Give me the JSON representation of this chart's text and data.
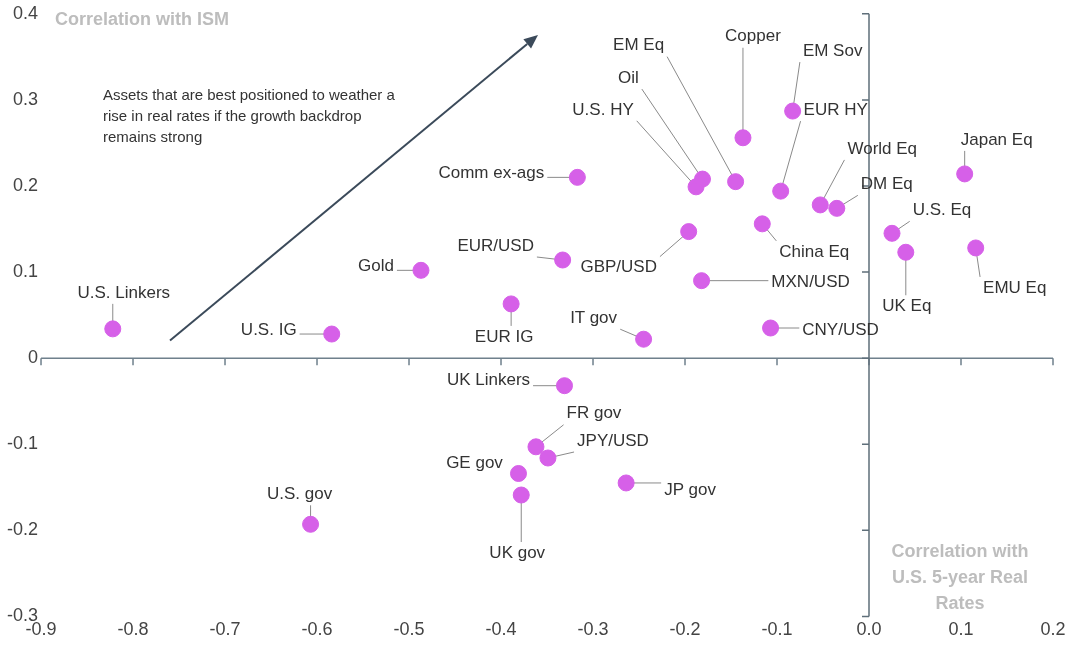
{
  "chart_data": {
    "type": "scatter",
    "xlabel": "Correlation with U.S. 5-year Real Rates",
    "ylabel": "Correlation with ISM",
    "x": [
      -0.822,
      -0.584,
      -0.487,
      -0.389,
      -0.333,
      -0.317,
      -0.245,
      -0.196,
      -0.182,
      -0.188,
      -0.181,
      -0.145,
      -0.137,
      -0.083,
      -0.096,
      -0.116,
      -0.053,
      -0.035,
      -0.107,
      0.025,
      0.04,
      0.104,
      0.116,
      -0.331,
      -0.362,
      -0.349,
      -0.381,
      -0.264,
      -0.378,
      -0.607
    ],
    "values": [
      0.034,
      0.028,
      0.102,
      0.063,
      0.114,
      0.21,
      0.022,
      0.147,
      0.09,
      0.199,
      0.208,
      0.205,
      0.256,
      0.287,
      0.194,
      0.156,
      0.178,
      0.174,
      0.035,
      0.145,
      0.123,
      0.214,
      0.128,
      -0.032,
      -0.103,
      -0.116,
      -0.134,
      -0.145,
      -0.159,
      -0.193
    ],
    "color": "#d660e8",
    "marker": "circle",
    "grid": false,
    "legend": false,
    "ref_lines": [
      {
        "axis": "y",
        "value": 0,
        "color": "#6f808c"
      },
      {
        "axis": "x",
        "value": 0,
        "color": "#5f6f7a"
      }
    ],
    "xlim": [
      -0.9,
      0.2
    ],
    "xticks": [
      -0.9,
      -0.8,
      -0.7,
      -0.6,
      -0.5,
      -0.4,
      -0.3,
      -0.2,
      -0.1,
      {
        "value": 0,
        "label": "0.0"
      },
      0.1,
      0.2
    ],
    "ylim": [
      -0.3,
      0.4
    ],
    "yticks": [
      -0.3,
      -0.2,
      -0.1,
      0,
      0.1,
      0.2,
      0.3,
      0.4
    ],
    "annotations": [
      "Assets that are best positioned to weather a rise in real rates if the growth backdrop remains strong",
      {
        "text": "U.S. Linkers",
        "x": -0.822,
        "y": 0.034
      },
      {
        "text": "U.S. IG",
        "x": -0.584,
        "y": 0.028
      },
      {
        "text": "Gold",
        "x": -0.487,
        "y": 0.102
      },
      {
        "text": "EUR IG",
        "x": -0.389,
        "y": 0.063
      },
      {
        "text": "EUR/USD",
        "x": -0.333,
        "y": 0.114
      },
      {
        "text": "Comm ex-ags",
        "x": -0.317,
        "y": 0.21
      },
      {
        "text": "IT gov",
        "x": -0.245,
        "y": 0.022
      },
      {
        "text": "GBP/USD",
        "x": -0.196,
        "y": 0.147
      },
      {
        "text": "MXN/USD",
        "x": -0.182,
        "y": 0.09
      },
      {
        "text": "U.S. HY",
        "x": -0.188,
        "y": 0.199
      },
      {
        "text": "Oil",
        "x": -0.181,
        "y": 0.208
      },
      {
        "text": "EM Eq",
        "x": -0.145,
        "y": 0.205
      },
      {
        "text": "Copper",
        "x": -0.137,
        "y": 0.256
      },
      {
        "text": "EM Sov",
        "x": -0.083,
        "y": 0.287
      },
      {
        "text": "EUR HY",
        "x": -0.096,
        "y": 0.194
      },
      {
        "text": "China Eq",
        "x": -0.116,
        "y": 0.156
      },
      {
        "text": "World Eq",
        "x": -0.053,
        "y": 0.178
      },
      {
        "text": "DM Eq",
        "x": -0.035,
        "y": 0.174
      },
      {
        "text": "CNY/USD",
        "x": -0.107,
        "y": 0.035
      },
      {
        "text": "U.S. Eq",
        "x": 0.025,
        "y": 0.145
      },
      {
        "text": "UK Eq",
        "x": 0.04,
        "y": 0.123
      },
      {
        "text": "Japan Eq",
        "x": 0.104,
        "y": 0.214
      },
      {
        "text": "EMU Eq",
        "x": 0.116,
        "y": 0.128
      },
      {
        "text": "UK Linkers",
        "x": -0.331,
        "y": -0.032
      },
      {
        "text": "FR gov",
        "x": -0.362,
        "y": -0.103
      },
      {
        "text": "JPY/USD",
        "x": -0.349,
        "y": -0.116
      },
      {
        "text": "GE gov",
        "x": -0.381,
        "y": -0.134
      },
      {
        "text": "JP gov",
        "x": -0.264,
        "y": -0.145
      },
      {
        "text": "UK gov",
        "x": -0.378,
        "y": -0.159
      },
      {
        "text": "U.S. gov",
        "x": -0.607,
        "y": -0.193
      }
    ]
  }
}
